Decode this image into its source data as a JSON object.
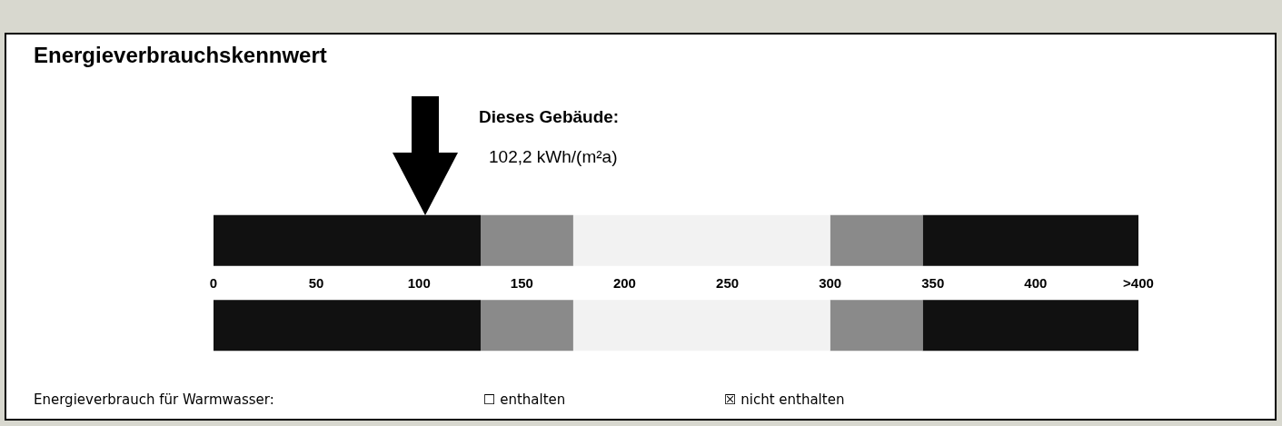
{
  "chart_data": {
    "type": "bar",
    "orientation": "horizontal",
    "stacked": true,
    "title": "Energieverbrauchskennwert",
    "categories": [
      null,
      null
    ],
    "series": [
      {
        "color": "#111111",
        "values": [
          130,
          130
        ]
      },
      {
        "color": "#8a8a8a",
        "values": [
          45,
          45
        ]
      },
      {
        "color": "#f2f2f2",
        "values": [
          125,
          125
        ]
      },
      {
        "color": "#8a8a8a",
        "values": [
          45,
          45
        ]
      },
      {
        "color": "#111111",
        "values": [
          105,
          105
        ]
      }
    ],
    "xlim": [
      0,
      450
    ],
    "xticks": [
      0,
      50,
      100,
      150,
      200,
      250,
      300,
      350,
      400,
      {
        "value": 450,
        "label": ">400"
      }
    ],
    "annotations": [
      "Dieses Gebäude:",
      "102,2 kWh/(m²a)",
      "Energieverbrauch für Warmwasser:",
      "☐ enthalten",
      "☒ nicht enthalten"
    ]
  }
}
